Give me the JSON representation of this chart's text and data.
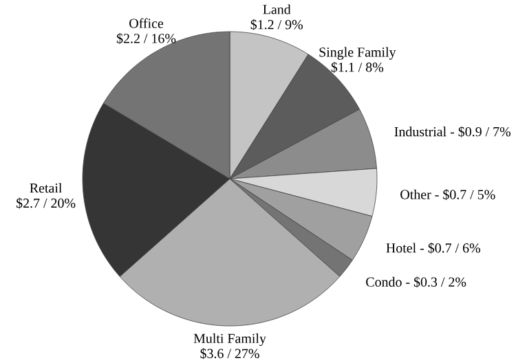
{
  "chart_data": {
    "type": "pie",
    "categories": [
      "Land",
      "Single Family",
      "Industrial -",
      "Other -",
      "Hotel -",
      "Condo -",
      "Multi Family",
      "Retail",
      "Office"
    ],
    "values": [
      1.2,
      1.1,
      0.9,
      0.7,
      0.7,
      0.3,
      3.6,
      2.7,
      2.2
    ],
    "value_labels": [
      "$1.2 / 9%",
      "$1.1 / 8%",
      "$0.9 / 7%",
      "$0.7 / 5%",
      "$0.7 / 6%",
      "$0.3 / 2%",
      "$3.6 / 27%",
      "$2.7 / 20%",
      "$2.2 / 16%"
    ],
    "colors": [
      "#c4c4c4",
      "#5c5c5c",
      "#8c8c8c",
      "#d8d8d8",
      "#a0a0a0",
      "#747474",
      "#b0b0b0",
      "#353535",
      "#747474"
    ]
  }
}
